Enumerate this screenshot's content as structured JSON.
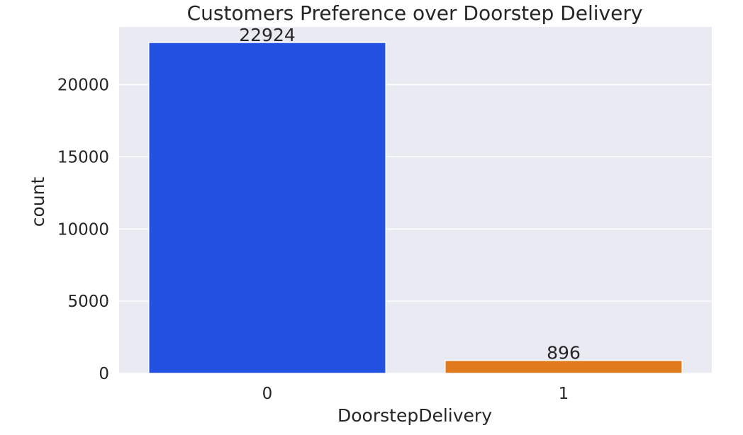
{
  "chart_data": {
    "type": "bar",
    "title": "Customers Preference over Doorstep Delivery",
    "xlabel": "DoorstepDelivery",
    "ylabel": "count",
    "categories": [
      "0",
      "1"
    ],
    "values": [
      22924,
      896
    ],
    "data_labels": [
      "22924",
      "896"
    ],
    "bar_colors": [
      "#2250e0",
      "#e07b1d"
    ],
    "ylim": [
      0,
      24000
    ],
    "yticks": [
      0,
      5000,
      10000,
      15000,
      20000
    ],
    "ytick_labels": [
      "0",
      "5000",
      "10000",
      "15000",
      "20000"
    ],
    "grid": true,
    "legend": "none",
    "background_color": "#eaeaf2",
    "grid_color": "#ffffff"
  }
}
